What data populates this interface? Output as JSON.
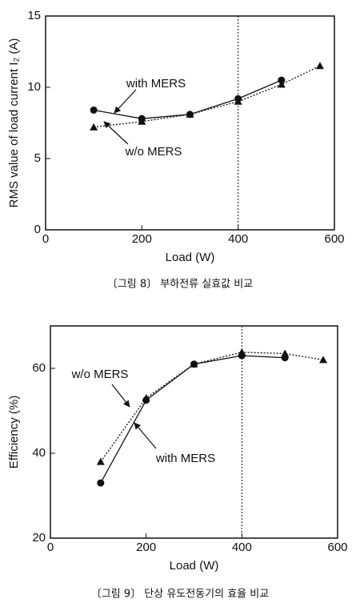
{
  "chart_data": [
    {
      "type": "line",
      "caption": "〔그림 8〕 부하전류 실효값 비교",
      "x_label": "Load (W)",
      "y_label": "RMS value of load current I₂ (A)",
      "xlim": [
        0,
        600
      ],
      "xticks": [
        0,
        200,
        400,
        600
      ],
      "ylim": [
        0,
        15
      ],
      "yticks": [
        0,
        5,
        10,
        15
      ],
      "reference_x": 400,
      "series": [
        {
          "name": "with MERS",
          "color": "#111111",
          "marker": "circle",
          "dashed": false,
          "x": [
            100,
            200,
            300,
            400,
            490
          ],
          "values": [
            8.4,
            7.8,
            8.1,
            9.2,
            10.5
          ]
        },
        {
          "name": "w/o MERS",
          "color": "#111111",
          "marker": "triangle",
          "dashed": true,
          "x": [
            100,
            200,
            300,
            400,
            490,
            570
          ],
          "values": [
            7.2,
            7.6,
            8.1,
            9.0,
            10.2,
            11.5
          ]
        }
      ]
    },
    {
      "type": "line",
      "caption": "〔그림 9〕 단상 유도전동기의 효율 비교",
      "x_label": "Load (W)",
      "y_label": "Efficiency (%)",
      "xlim": [
        0,
        600
      ],
      "xticks": [
        0,
        200,
        400,
        600
      ],
      "ylim": [
        20,
        70
      ],
      "yticks": [
        20,
        40,
        60
      ],
      "reference_x": 400,
      "series": [
        {
          "name": "with MERS",
          "color": "#111111",
          "marker": "circle",
          "dashed": false,
          "x": [
            105,
            200,
            300,
            400,
            490
          ],
          "values": [
            33,
            52.5,
            61,
            63,
            62.5
          ]
        },
        {
          "name": "w/o MERS",
          "color": "#111111",
          "marker": "triangle",
          "dashed": true,
          "x": [
            105,
            200,
            300,
            400,
            490,
            570
          ],
          "values": [
            38,
            53,
            61,
            63.8,
            63.5,
            62
          ]
        }
      ]
    }
  ]
}
